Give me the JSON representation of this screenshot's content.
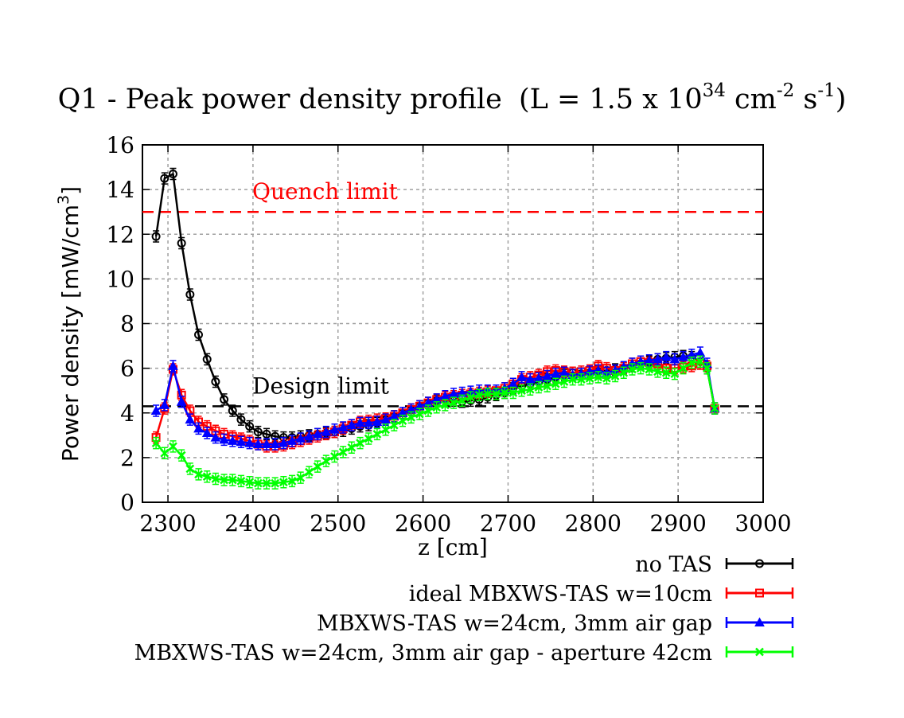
{
  "chart_data": {
    "type": "line",
    "title": "Q1 - Peak power density profile",
    "title_formula": {
      "open": "(L = 1.5 x 10",
      "exp1": "34",
      "unit1": " cm",
      "exp2": "-2",
      "unit2": " s",
      "exp3": "-1",
      "close": ")"
    },
    "xlabel": "z [cm]",
    "ylabel": "Power  density [mW/cm",
    "ylabel_exp": "3",
    "ylabel_close": "]",
    "xlim": [
      2270,
      3000
    ],
    "ylim": [
      0,
      16
    ],
    "xticks": [
      2300,
      2400,
      2500,
      2600,
      2700,
      2800,
      2900,
      3000
    ],
    "yticks": [
      0,
      2,
      4,
      6,
      8,
      10,
      12,
      14,
      16
    ],
    "grid": true,
    "legend_position": "below-right",
    "reference_lines": [
      {
        "name": "Quench limit",
        "label": "Quench limit",
        "y": 13.0,
        "color": "#ff0000",
        "style": "dashed"
      },
      {
        "name": "Design limit",
        "label": "Design limit",
        "y": 4.3,
        "color": "#000000",
        "style": "dashed"
      }
    ],
    "series": [
      {
        "name": "no TAS",
        "color": "#000000",
        "marker": "circle",
        "x": [
          2286,
          2296,
          2306,
          2316,
          2326,
          2336,
          2346,
          2356,
          2366,
          2376,
          2386,
          2396,
          2406,
          2416,
          2426,
          2436,
          2446,
          2456,
          2466,
          2476,
          2486,
          2496,
          2506,
          2516,
          2526,
          2536,
          2546,
          2556,
          2566,
          2576,
          2586,
          2596,
          2606,
          2616,
          2626,
          2636,
          2646,
          2656,
          2666,
          2676,
          2686,
          2696,
          2706,
          2716,
          2726,
          2736,
          2746,
          2756,
          2766,
          2776,
          2786,
          2796,
          2806,
          2816,
          2826,
          2836,
          2846,
          2856,
          2866,
          2876,
          2886,
          2896,
          2906,
          2916,
          2926,
          2934,
          2943
        ],
        "y": [
          11.9,
          14.5,
          14.7,
          11.6,
          9.3,
          7.5,
          6.4,
          5.4,
          4.6,
          4.1,
          3.7,
          3.4,
          3.15,
          3.05,
          2.95,
          2.9,
          2.9,
          2.95,
          3.0,
          3.05,
          3.1,
          3.15,
          3.2,
          3.3,
          3.4,
          3.45,
          3.55,
          3.7,
          3.85,
          4.0,
          4.15,
          4.3,
          4.45,
          4.55,
          4.6,
          4.55,
          4.5,
          4.55,
          4.6,
          4.7,
          4.8,
          4.9,
          5.1,
          5.2,
          5.3,
          5.4,
          5.5,
          5.6,
          5.7,
          5.8,
          5.75,
          5.8,
          5.85,
          5.9,
          5.95,
          6.0,
          6.1,
          6.2,
          6.3,
          6.4,
          6.45,
          6.5,
          6.55,
          6.5,
          6.3,
          6.0,
          4.2
        ]
      },
      {
        "name": "ideal MBXWS-TAS w=10cm",
        "color": "#ff0000",
        "marker": "square",
        "x": [
          2286,
          2296,
          2306,
          2316,
          2326,
          2336,
          2346,
          2356,
          2366,
          2376,
          2386,
          2396,
          2406,
          2416,
          2426,
          2436,
          2446,
          2456,
          2466,
          2476,
          2486,
          2496,
          2506,
          2516,
          2526,
          2536,
          2546,
          2556,
          2566,
          2576,
          2586,
          2596,
          2606,
          2616,
          2626,
          2636,
          2646,
          2656,
          2666,
          2676,
          2686,
          2696,
          2706,
          2716,
          2726,
          2736,
          2746,
          2756,
          2766,
          2776,
          2786,
          2796,
          2806,
          2816,
          2826,
          2836,
          2846,
          2856,
          2866,
          2876,
          2886,
          2896,
          2906,
          2916,
          2926,
          2934,
          2943
        ],
        "y": [
          2.9,
          4.2,
          5.95,
          4.8,
          4.1,
          3.6,
          3.4,
          3.2,
          3.05,
          2.95,
          2.85,
          2.75,
          2.6,
          2.5,
          2.5,
          2.55,
          2.65,
          2.75,
          2.85,
          2.95,
          3.05,
          3.15,
          3.3,
          3.45,
          3.6,
          3.65,
          3.7,
          3.75,
          3.85,
          4.0,
          4.15,
          4.3,
          4.45,
          4.6,
          4.7,
          4.75,
          4.8,
          4.85,
          4.9,
          4.95,
          5.0,
          5.1,
          5.3,
          5.5,
          5.6,
          5.7,
          5.85,
          5.9,
          5.85,
          5.8,
          5.85,
          5.9,
          6.1,
          6.0,
          5.9,
          6.0,
          6.2,
          6.3,
          6.25,
          6.2,
          6.0,
          6.0,
          6.05,
          6.1,
          6.2,
          6.1,
          4.2
        ]
      },
      {
        "name": "MBXWS-TAS w=24cm, 3mm air gap",
        "color": "#0000ff",
        "marker": "triangle",
        "x": [
          2286,
          2296,
          2306,
          2316,
          2326,
          2336,
          2346,
          2356,
          2366,
          2376,
          2386,
          2396,
          2406,
          2416,
          2426,
          2436,
          2446,
          2456,
          2466,
          2476,
          2486,
          2496,
          2506,
          2516,
          2526,
          2536,
          2546,
          2556,
          2566,
          2576,
          2586,
          2596,
          2606,
          2616,
          2626,
          2636,
          2646,
          2656,
          2666,
          2676,
          2686,
          2696,
          2706,
          2716,
          2726,
          2736,
          2746,
          2756,
          2766,
          2776,
          2786,
          2796,
          2806,
          2816,
          2826,
          2836,
          2846,
          2856,
          2866,
          2876,
          2886,
          2896,
          2906,
          2916,
          2926,
          2934,
          2943
        ],
        "y": [
          4.1,
          4.35,
          6.1,
          4.5,
          3.7,
          3.3,
          3.1,
          2.9,
          2.8,
          2.75,
          2.7,
          2.65,
          2.6,
          2.6,
          2.6,
          2.65,
          2.75,
          2.85,
          2.95,
          3.05,
          3.15,
          3.25,
          3.35,
          3.45,
          3.55,
          3.55,
          3.6,
          3.7,
          3.85,
          4.0,
          4.15,
          4.3,
          4.45,
          4.6,
          4.75,
          4.85,
          4.9,
          4.95,
          5.0,
          5.0,
          5.0,
          5.1,
          5.3,
          5.6,
          5.5,
          5.55,
          5.65,
          5.75,
          5.8,
          5.7,
          5.75,
          5.85,
          5.9,
          5.8,
          5.9,
          6.05,
          6.2,
          6.3,
          6.35,
          6.4,
          6.5,
          6.4,
          6.5,
          6.6,
          6.7,
          6.2,
          4.2
        ]
      },
      {
        "name": "MBXWS-TAS w=24cm, 3mm air gap - aperture 42cm",
        "color": "#00ff00",
        "marker": "cross",
        "x": [
          2286,
          2296,
          2306,
          2316,
          2326,
          2336,
          2346,
          2356,
          2366,
          2376,
          2386,
          2396,
          2406,
          2416,
          2426,
          2436,
          2446,
          2456,
          2466,
          2476,
          2486,
          2496,
          2506,
          2516,
          2526,
          2536,
          2546,
          2556,
          2566,
          2576,
          2586,
          2596,
          2606,
          2616,
          2626,
          2636,
          2646,
          2656,
          2666,
          2676,
          2686,
          2696,
          2706,
          2716,
          2726,
          2736,
          2746,
          2756,
          2766,
          2776,
          2786,
          2796,
          2806,
          2816,
          2826,
          2836,
          2846,
          2856,
          2866,
          2876,
          2886,
          2896,
          2906,
          2916,
          2926,
          2934,
          2943
        ],
        "y": [
          2.65,
          2.2,
          2.5,
          2.1,
          1.5,
          1.25,
          1.15,
          1.05,
          1.0,
          1.0,
          0.95,
          0.9,
          0.85,
          0.85,
          0.85,
          0.9,
          0.95,
          1.1,
          1.35,
          1.6,
          1.85,
          2.05,
          2.25,
          2.45,
          2.65,
          2.85,
          3.05,
          3.25,
          3.45,
          3.65,
          3.8,
          3.95,
          4.1,
          4.25,
          4.35,
          4.45,
          4.55,
          4.7,
          4.8,
          4.85,
          4.85,
          4.9,
          4.9,
          5.0,
          5.05,
          5.15,
          5.2,
          5.3,
          5.4,
          5.5,
          5.5,
          5.55,
          5.6,
          5.55,
          5.65,
          5.8,
          5.95,
          6.0,
          5.95,
          5.85,
          5.8,
          5.75,
          6.0,
          6.25,
          6.3,
          6.0,
          4.2
        ]
      }
    ]
  }
}
